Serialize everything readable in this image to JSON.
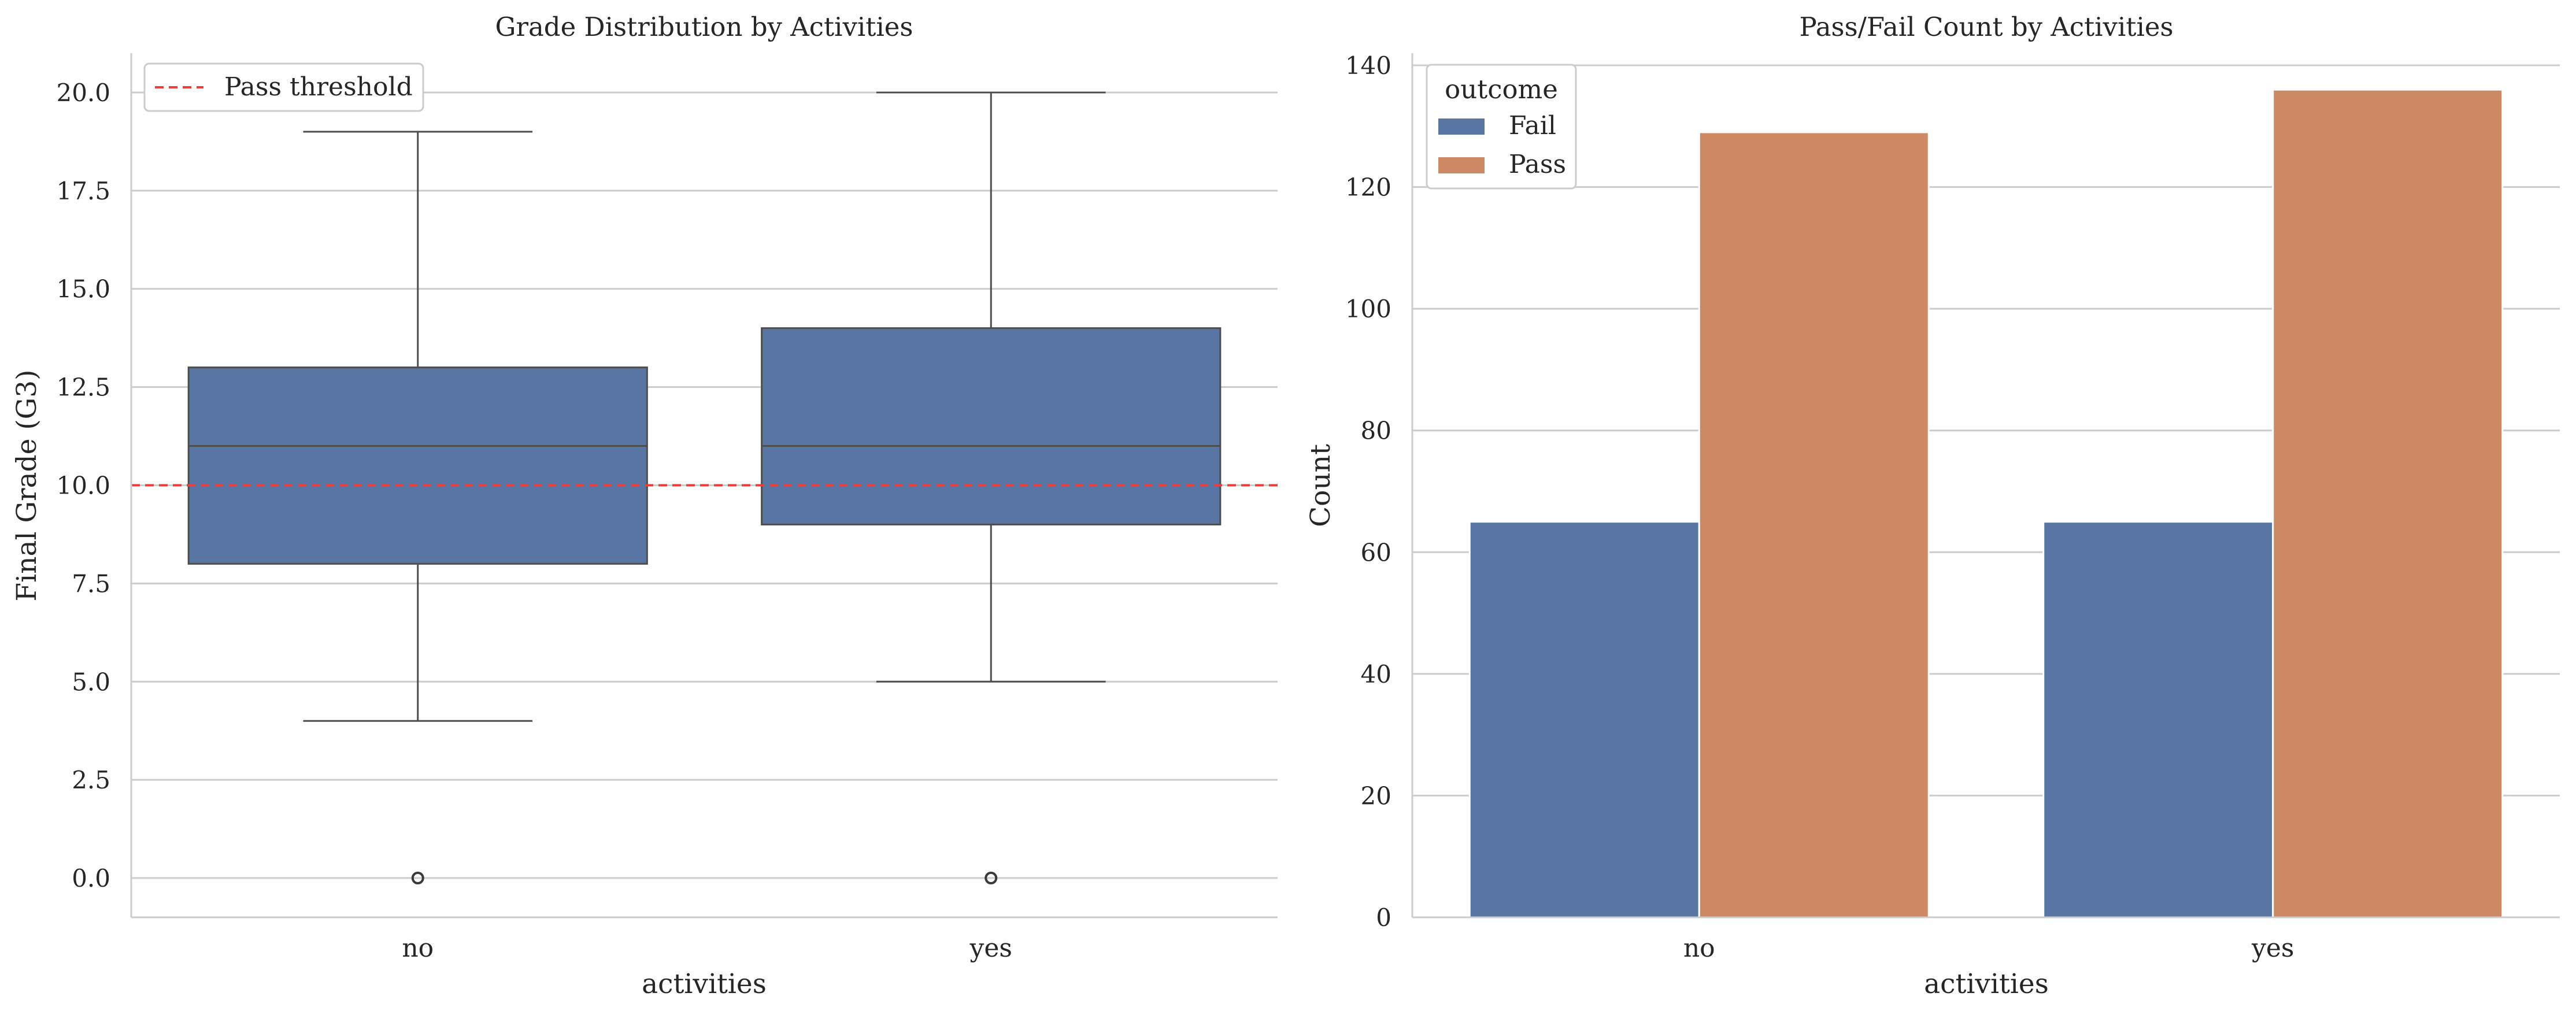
{
  "colors": {
    "box_fill": "#5975a4",
    "fail": "#5975a4",
    "pass": "#cc8963",
    "threshold": "#ef3b3b",
    "grid": "#cccccc",
    "line": "#4d4d4d"
  },
  "chart_data": [
    {
      "type": "box",
      "title": "Grade Distribution by Activities",
      "xlabel": "activities",
      "ylabel": "Final Grade (G3)",
      "ylim": [
        -1,
        21
      ],
      "yticks": [
        "0.0",
        "2.5",
        "5.0",
        "7.5",
        "10.0",
        "12.5",
        "15.0",
        "17.5",
        "20.0"
      ],
      "ytick_values": [
        0,
        2.5,
        5,
        7.5,
        10,
        12.5,
        15,
        17.5,
        20
      ],
      "grid": "horizontal",
      "legend": {
        "placement": "top-left",
        "entries": [
          "Pass threshold"
        ]
      },
      "threshold": {
        "label": "Pass threshold",
        "value": 10
      },
      "categories": [
        "no",
        "yes"
      ],
      "boxes": [
        {
          "category": "no",
          "whisker_low": 4,
          "q1": 8,
          "median": 11,
          "q3": 13,
          "whisker_high": 19,
          "outliers": [
            0
          ]
        },
        {
          "category": "yes",
          "whisker_low": 5,
          "q1": 9,
          "median": 11,
          "q3": 14,
          "whisker_high": 20,
          "outliers": [
            0
          ]
        }
      ]
    },
    {
      "type": "bar",
      "title": "Pass/Fail Count by Activities",
      "xlabel": "activities",
      "ylabel": "Count",
      "ylim": [
        0,
        142
      ],
      "yticks": [
        "0",
        "20",
        "40",
        "60",
        "80",
        "100",
        "120",
        "140"
      ],
      "ytick_values": [
        0,
        20,
        40,
        60,
        80,
        100,
        120,
        140
      ],
      "grid": "horizontal",
      "legend": {
        "placement": "top-left",
        "title": "outcome"
      },
      "categories": [
        "no",
        "yes"
      ],
      "series": [
        {
          "name": "Fail",
          "values": [
            65,
            65
          ]
        },
        {
          "name": "Pass",
          "values": [
            129,
            136
          ]
        }
      ]
    }
  ]
}
